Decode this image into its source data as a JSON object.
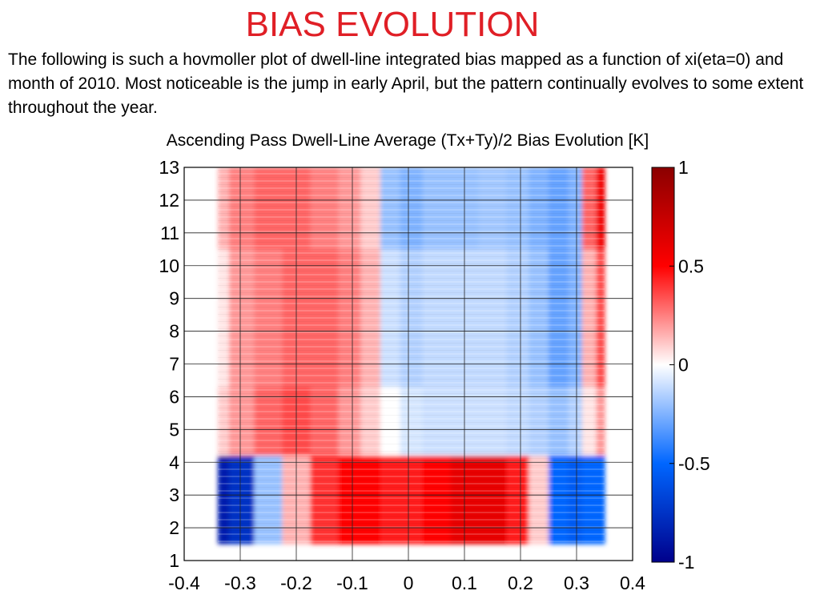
{
  "slide": {
    "title": "BIAS EVOLUTION",
    "description": "The following is such a hovmoller plot of dwell-line integrated bias mapped as a function of xi(eta=0) and month of 2010. Most noticeable is the jump in early April, but the pattern continually evolves to some extent throughout the year."
  },
  "chart_data": {
    "type": "heatmap",
    "title": "Ascending Pass Dwell-Line Average (Tx+Ty)/2 Bias Evolution [K]",
    "xlabel": "",
    "ylabel": "",
    "xlim": [
      -0.4,
      0.4
    ],
    "ylim": [
      1,
      13
    ],
    "x_ticks": [
      "-0.4",
      "-0.3",
      "-0.2",
      "-0.1",
      "0",
      "0.1",
      "0.2",
      "0.3",
      "0.4"
    ],
    "y_ticks": [
      "1",
      "2",
      "3",
      "4",
      "5",
      "6",
      "7",
      "8",
      "9",
      "10",
      "11",
      "12",
      "13"
    ],
    "grid": true,
    "data_x_range": [
      -0.34,
      0.35
    ],
    "data_y_range": [
      1.5,
      13
    ],
    "x": [
      -0.34,
      -0.3,
      -0.25,
      -0.2,
      -0.15,
      -0.1,
      -0.07,
      -0.03,
      0,
      0.05,
      0.1,
      0.15,
      0.2,
      0.23,
      0.27,
      0.3,
      0.32,
      0.35
    ],
    "rows": [
      {
        "y_range": [
          1.5,
          4.2
        ],
        "values": [
          -0.85,
          -0.75,
          -0.2,
          0.15,
          0.4,
          0.5,
          0.5,
          0.45,
          0.45,
          0.5,
          0.6,
          0.6,
          0.45,
          0.1,
          -0.5,
          -0.55,
          -0.5,
          -0.5
        ]
      },
      {
        "y_range": [
          4.2,
          6.3
        ],
        "values": [
          0.1,
          0.2,
          0.3,
          0.35,
          0.3,
          0.2,
          0.1,
          0.0,
          -0.08,
          -0.1,
          -0.1,
          -0.1,
          -0.12,
          -0.15,
          -0.2,
          -0.15,
          0.05,
          0.2
        ]
      },
      {
        "y_range": [
          6.3,
          10.5
        ],
        "values": [
          0.05,
          0.2,
          0.25,
          0.3,
          0.3,
          0.25,
          0.15,
          -0.1,
          -0.15,
          -0.12,
          -0.12,
          -0.12,
          -0.15,
          -0.2,
          -0.3,
          -0.25,
          0.15,
          0.35
        ]
      },
      {
        "y_range": [
          10.5,
          13
        ],
        "values": [
          0.15,
          0.25,
          0.3,
          0.3,
          0.25,
          0.2,
          0.1,
          -0.2,
          -0.25,
          -0.2,
          -0.2,
          -0.18,
          -0.2,
          -0.25,
          -0.3,
          -0.25,
          0.3,
          0.55
        ]
      }
    ],
    "colorbar": {
      "range": [
        -1,
        1
      ],
      "ticks": [
        "1",
        "0.5",
        "0",
        "-0.5",
        "-1"
      ],
      "colors": [
        "#8b0000",
        "#ff0000",
        "#ffffff",
        "#0066ff",
        "#00008b"
      ]
    }
  }
}
